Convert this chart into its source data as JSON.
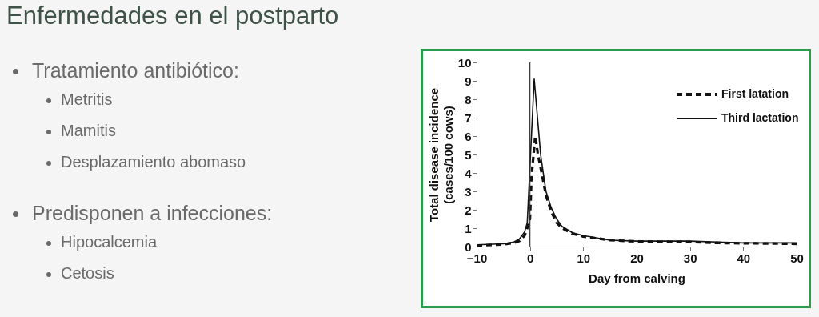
{
  "chart_data": {
    "type": "line",
    "title": "Enfermedades en el postparto",
    "annotations": [
      "Tratamiento antibiótico:",
      "Metritis",
      "Mamitis",
      "Desplazamiento abomaso",
      "Predisponen a infecciones:",
      "Hipocalcemia",
      "Cetosis"
    ],
    "xlabel": "Day from calving",
    "ylabel": "Total disease incidence\n(cases/100 cows)",
    "xlim": [
      -10,
      50
    ],
    "xticks": [
      -10,
      0,
      10,
      20,
      30,
      40,
      50
    ],
    "ylim": [
      0,
      10
    ],
    "yticks": [
      0,
      1,
      2,
      3,
      4,
      5,
      6,
      7,
      8,
      9,
      10
    ],
    "grid": false,
    "legend": "top right",
    "ref_lines": [
      {
        "axis": "x",
        "value": 0,
        "color": "#333333"
      }
    ],
    "series": [
      {
        "name": "First latation",
        "color": "#111111",
        "line_style": "dashed",
        "x": [
          -10,
          -5,
          -3,
          -2,
          -1,
          -0.5,
          0,
          0.3,
          1,
          1.5,
          2,
          3,
          4,
          5,
          6,
          8,
          10,
          15,
          20,
          25,
          30,
          35,
          40,
          45,
          50
        ],
        "values": [
          0.05,
          0.12,
          0.2,
          0.3,
          0.6,
          1.0,
          1.5,
          3.8,
          6,
          5,
          4.3,
          2.8,
          1.9,
          1.3,
          1.0,
          0.7,
          0.55,
          0.35,
          0.28,
          0.26,
          0.25,
          0.2,
          0.18,
          0.17,
          0.15
        ]
      },
      {
        "name": "Third lactation",
        "color": "#111111",
        "line_style": "solid",
        "x": [
          -10,
          -5,
          -3,
          -2,
          -1,
          -0.5,
          0.8,
          2,
          3,
          4,
          5,
          6,
          8,
          10,
          15,
          20,
          25,
          30,
          35,
          40,
          45,
          50
        ],
        "values": [
          0.1,
          0.15,
          0.25,
          0.4,
          0.8,
          1.3,
          9.1,
          5,
          3,
          2.1,
          1.5,
          1.1,
          0.75,
          0.6,
          0.35,
          0.3,
          0.3,
          0.3,
          0.25,
          0.2,
          0.2,
          0.2
        ]
      }
    ]
  }
}
